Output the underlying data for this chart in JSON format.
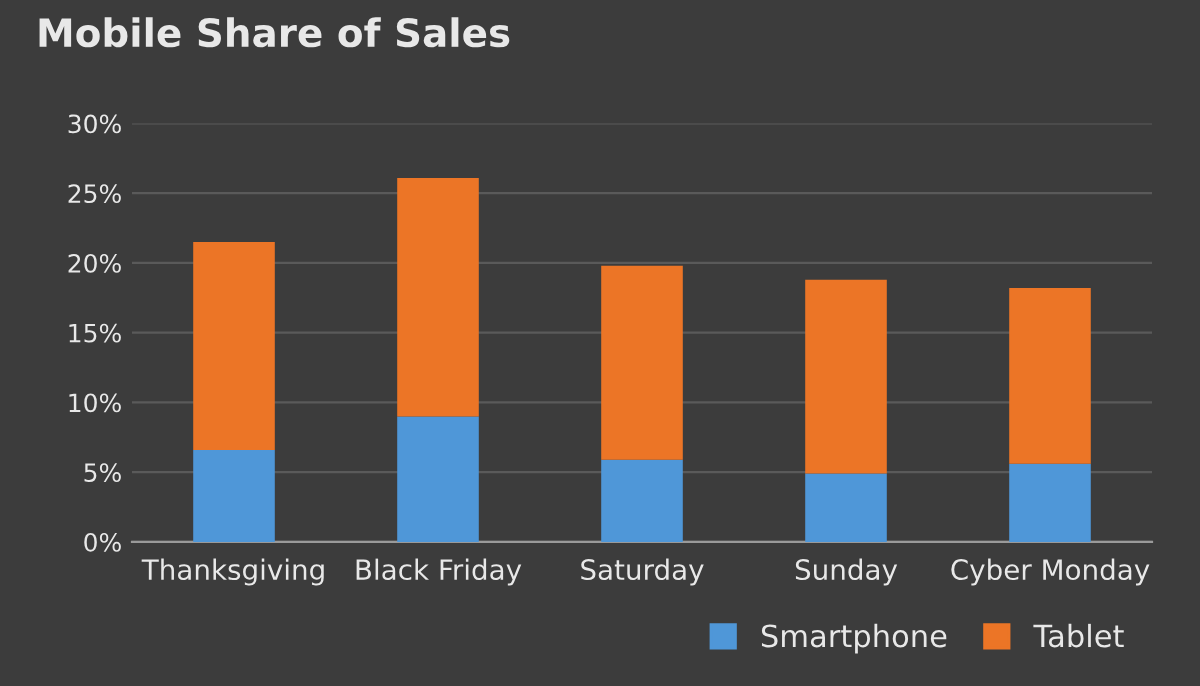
{
  "chart_data": {
    "type": "bar",
    "title": "Mobile Share of Sales",
    "categories": [
      "Thanksgiving",
      "Black Friday",
      "Saturday",
      "Sunday",
      "Cyber Monday"
    ],
    "stacked": true,
    "series": [
      {
        "name": "Smartphone",
        "color": "#4f97d8",
        "values": [
          6.6,
          9.0,
          5.9,
          4.9,
          5.6
        ]
      },
      {
        "name": "Tablet",
        "color": "#ec7526",
        "values": [
          14.9,
          17.1,
          13.9,
          13.9,
          12.6
        ]
      }
    ],
    "ylim": [
      0,
      30
    ],
    "yticks": [
      {
        "value": 0,
        "label": "0%"
      },
      {
        "value": 5,
        "label": "5%"
      },
      {
        "value": 10,
        "label": "10%"
      },
      {
        "value": 15,
        "label": "15%"
      },
      {
        "value": 20,
        "label": "20%"
      },
      {
        "value": 25,
        "label": "25%"
      },
      {
        "value": 30,
        "label": "30%"
      }
    ],
    "grid": "y",
    "legend": "bottom right"
  }
}
